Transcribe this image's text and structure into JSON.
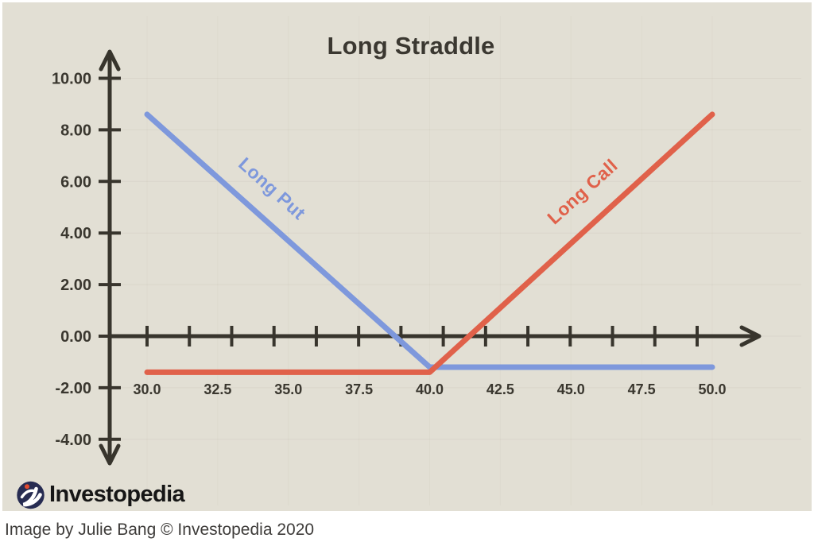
{
  "page": {
    "background": "#ffffff",
    "panel_background": "#e2dfd4",
    "caption": "Image by Julie Bang © Investopedia 2020"
  },
  "branding": {
    "logo_text": "Investopedia",
    "logo_icon": "investopedia-swoosh-icon",
    "logo_circle_color": "#272c52",
    "logo_dot_color": "#e24b2e",
    "logo_swoosh_color": "#ffffff"
  },
  "chart_data": {
    "type": "line",
    "title": "Long Straddle",
    "xlabel": "",
    "ylabel": "",
    "xlim": [
      30,
      50
    ],
    "ylim": [
      -4,
      10
    ],
    "grid": "faint",
    "legend_position": "inline-rotated-labels",
    "axis_color": "#38352d",
    "tick_label_color": "#3a372f",
    "x_tick_labels": [
      "30.0",
      "32.5",
      "35.0",
      "37.5",
      "40.0",
      "42.5",
      "45.0",
      "47.5",
      "50.0"
    ],
    "y_tick_labels": [
      "10.00",
      "8.00",
      "6.00",
      "4.00",
      "2.00",
      "0.00",
      "-2.00",
      "-4.00"
    ],
    "y_tick_values": [
      10,
      8,
      6,
      4,
      2,
      0,
      -2,
      -4
    ],
    "series": [
      {
        "name": "Long Put",
        "color": "#7e98dc",
        "points": [
          [
            30,
            8.6
          ],
          [
            40,
            -1.2
          ],
          [
            50,
            -1.2
          ]
        ]
      },
      {
        "name": "Long Call",
        "color": "#e0614a",
        "points": [
          [
            30,
            -1.4
          ],
          [
            40,
            -1.4
          ],
          [
            50,
            8.6
          ]
        ]
      }
    ]
  }
}
